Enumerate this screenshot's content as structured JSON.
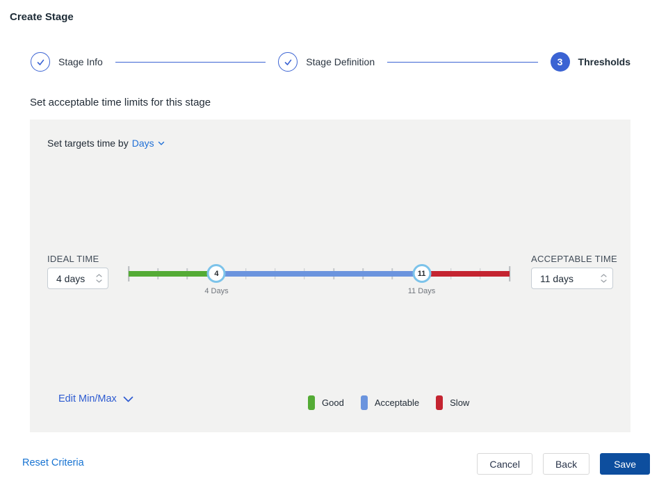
{
  "title": "Create Stage",
  "stepper": {
    "steps": [
      {
        "label": "Stage Info",
        "state": "complete"
      },
      {
        "label": "Stage Definition",
        "state": "complete"
      },
      {
        "label": "Thresholds",
        "state": "current",
        "number": "3"
      }
    ]
  },
  "heading": "Set acceptable time limits for this stage",
  "panel": {
    "target_time_label": "Set targets time by",
    "target_time_unit": "Days",
    "ideal": {
      "label": "IDEAL TIME",
      "value": "4 days"
    },
    "acceptable": {
      "label": "ACCEPTABLE TIME",
      "value": "11 days"
    },
    "edit_minmax_label": "Edit Min/Max",
    "legend": [
      {
        "label": "Good",
        "color": "#54ab35"
      },
      {
        "label": "Acceptable",
        "color": "#6b94de"
      },
      {
        "label": "Slow",
        "color": "#c42430"
      }
    ]
  },
  "slider": {
    "min_day": 1,
    "max_day": 14,
    "ideal_day": 4,
    "acceptable_day": 11,
    "ideal_label": "4 Days",
    "acceptable_label": "11 Days",
    "colors": {
      "good": "#54ab35",
      "acceptable": "#6b94de",
      "slow": "#c42430"
    },
    "handle_border": "#7cc3ea"
  },
  "footer": {
    "reset_label": "Reset Criteria",
    "cancel_label": "Cancel",
    "back_label": "Back",
    "save_label": "Save"
  },
  "colors": {
    "accent_blue": "#3b63d3",
    "link_blue": "#1f6fd6",
    "save_blue": "#0d4e9e",
    "panel_bg": "#f2f2f1"
  }
}
